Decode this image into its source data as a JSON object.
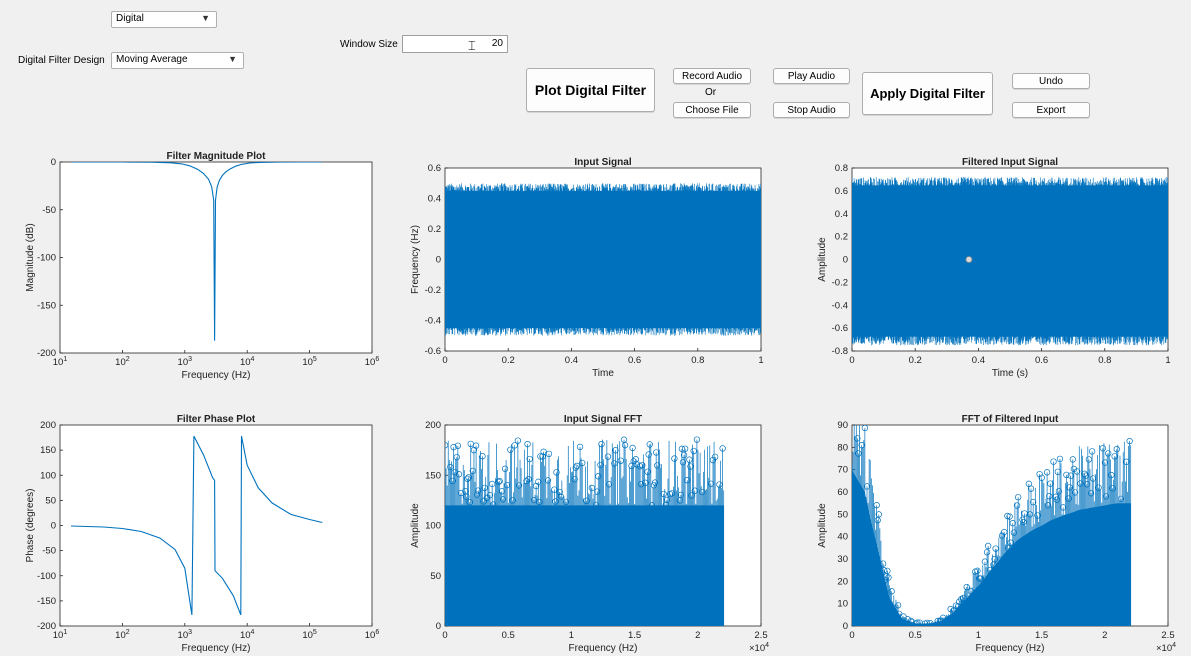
{
  "controls": {
    "mode_value": "Digital",
    "filter_design_label": "Digital Filter Design",
    "filter_design_value": "Moving Average",
    "window_size_label": "Window Size",
    "window_size_value": "20",
    "plot_button": "Plot Digital Filter",
    "record_button": "Record Audio",
    "or_label": "Or",
    "choose_file_button": "Choose File",
    "play_button": "Play Audio",
    "stop_button": "Stop Audio",
    "apply_button": "Apply Digital Filter",
    "undo_button": "Undo",
    "export_button": "Export"
  },
  "colors": {
    "plot_line": "#0072bd",
    "background": "#f0f0f0"
  },
  "chart_data": [
    {
      "type": "line",
      "title": "Filter Magnitude Plot",
      "xlabel": "Frequency (Hz)",
      "ylabel": "Magnitude (dB)",
      "xscale": "log",
      "xlim": [
        10,
        1000000
      ],
      "ylim": [
        -200,
        0
      ],
      "xticks": [
        "10^1",
        "10^2",
        "10^3",
        "10^4",
        "10^5",
        "10^6"
      ],
      "yticks": [
        "-200",
        "-150",
        "-100",
        "-50",
        "0"
      ],
      "x": [
        15,
        100,
        300,
        600,
        900,
        1200,
        1600,
        2000,
        2400,
        2700,
        2900,
        3000,
        3100,
        3300,
        3600,
        4000,
        4600,
        5400,
        6500,
        8000,
        11000,
        16000,
        30000,
        80000,
        160000
      ],
      "y": [
        0,
        0,
        -0.2,
        -0.8,
        -2,
        -4,
        -7.5,
        -12,
        -18,
        -26,
        -40,
        -187,
        -40,
        -26,
        -19,
        -14,
        -10,
        -7,
        -4.5,
        -2.5,
        -1,
        -0.4,
        -0.1,
        0,
        0
      ]
    },
    {
      "type": "line",
      "title": "Input Signal",
      "xlabel": "Time",
      "ylabel": "Frequency (Hz)",
      "xlim": [
        0,
        1
      ],
      "ylim": [
        -0.6,
        0.6
      ],
      "xticks": [
        "0",
        "0.2",
        "0.4",
        "0.6",
        "0.8",
        "1"
      ],
      "yticks": [
        "-0.6",
        "-0.4",
        "-0.2",
        "0",
        "0.2",
        "0.4",
        "0.6"
      ],
      "envelope": {
        "upper": 0.5,
        "lower": -0.5
      }
    },
    {
      "type": "line",
      "title": "Filtered Input Signal",
      "xlabel": "Time (s)",
      "ylabel": "Amplitude",
      "xlim": [
        0,
        1
      ],
      "ylim": [
        -0.8,
        0.8
      ],
      "xticks": [
        "0",
        "0.2",
        "0.4",
        "0.6",
        "0.8",
        "1"
      ],
      "yticks": [
        "-0.8",
        "-0.6",
        "-0.4",
        "-0.2",
        "0",
        "0.2",
        "0.4",
        "0.6",
        "0.8"
      ],
      "envelope": {
        "upper": 0.72,
        "lower": -0.75
      },
      "marker": {
        "x": 0.37,
        "y": 0.0
      }
    },
    {
      "type": "line",
      "title": "Filter Phase Plot",
      "xlabel": "Frequency (Hz)",
      "ylabel": "Phase (degrees)",
      "xscale": "log",
      "xlim": [
        10,
        1000000
      ],
      "ylim": [
        -200,
        200
      ],
      "xticks": [
        "10^1",
        "10^2",
        "10^3",
        "10^4",
        "10^5",
        "10^6"
      ],
      "yticks": [
        "-200",
        "-150",
        "-100",
        "-50",
        "0",
        "50",
        "100",
        "150",
        "200"
      ],
      "x": [
        15,
        50,
        100,
        200,
        400,
        700,
        1000,
        1300,
        1400,
        2000,
        2800,
        3000,
        3050,
        4000,
        6000,
        7900,
        8100,
        10000,
        15000,
        25000,
        50000,
        100000,
        160000
      ],
      "y": [
        -1,
        -3,
        -6,
        -12,
        -25,
        -48,
        -85,
        -178,
        178,
        140,
        95,
        90,
        -90,
        -105,
        -140,
        -178,
        178,
        120,
        75,
        45,
        22,
        12,
        6
      ]
    },
    {
      "type": "scatter",
      "title": "Input Signal FFT",
      "xlabel": "Frequency (Hz)",
      "ylabel": "Amplitude",
      "xlim": [
        0,
        25000
      ],
      "ylim": [
        0,
        200
      ],
      "x_exponent": "×10^4",
      "xticks": [
        "0",
        "0.5",
        "1",
        "1.5",
        "2",
        "2.5"
      ],
      "yticks": [
        "0",
        "50",
        "100",
        "150",
        "200"
      ],
      "extent_x": 22050,
      "typical_peak": 150
    },
    {
      "type": "scatter",
      "title": "FFT of Filtered Input",
      "xlabel": "Frequency (Hz)",
      "ylabel": "Amplitude",
      "xlim": [
        0,
        25000
      ],
      "ylim": [
        0,
        90
      ],
      "x_exponent": "×10^4",
      "xticks": [
        "0",
        "0.5",
        "1",
        "1.5",
        "2",
        "2.5"
      ],
      "yticks": [
        "0",
        "10",
        "20",
        "30",
        "40",
        "50",
        "60",
        "70",
        "80",
        "90"
      ],
      "extent_x": 22050,
      "profile_x": [
        0,
        1000,
        2000,
        3000,
        4000,
        5000,
        6000,
        7000,
        8000,
        9000,
        10000,
        11000,
        12000,
        13000,
        14000,
        15000,
        16000,
        17000,
        18000,
        19000,
        20000,
        21000,
        22050
      ],
      "profile_y": [
        70,
        60,
        35,
        12,
        3,
        1,
        1,
        2,
        6,
        12,
        18,
        25,
        32,
        38,
        42,
        45,
        48,
        50,
        52,
        53,
        54,
        55,
        55
      ]
    }
  ]
}
